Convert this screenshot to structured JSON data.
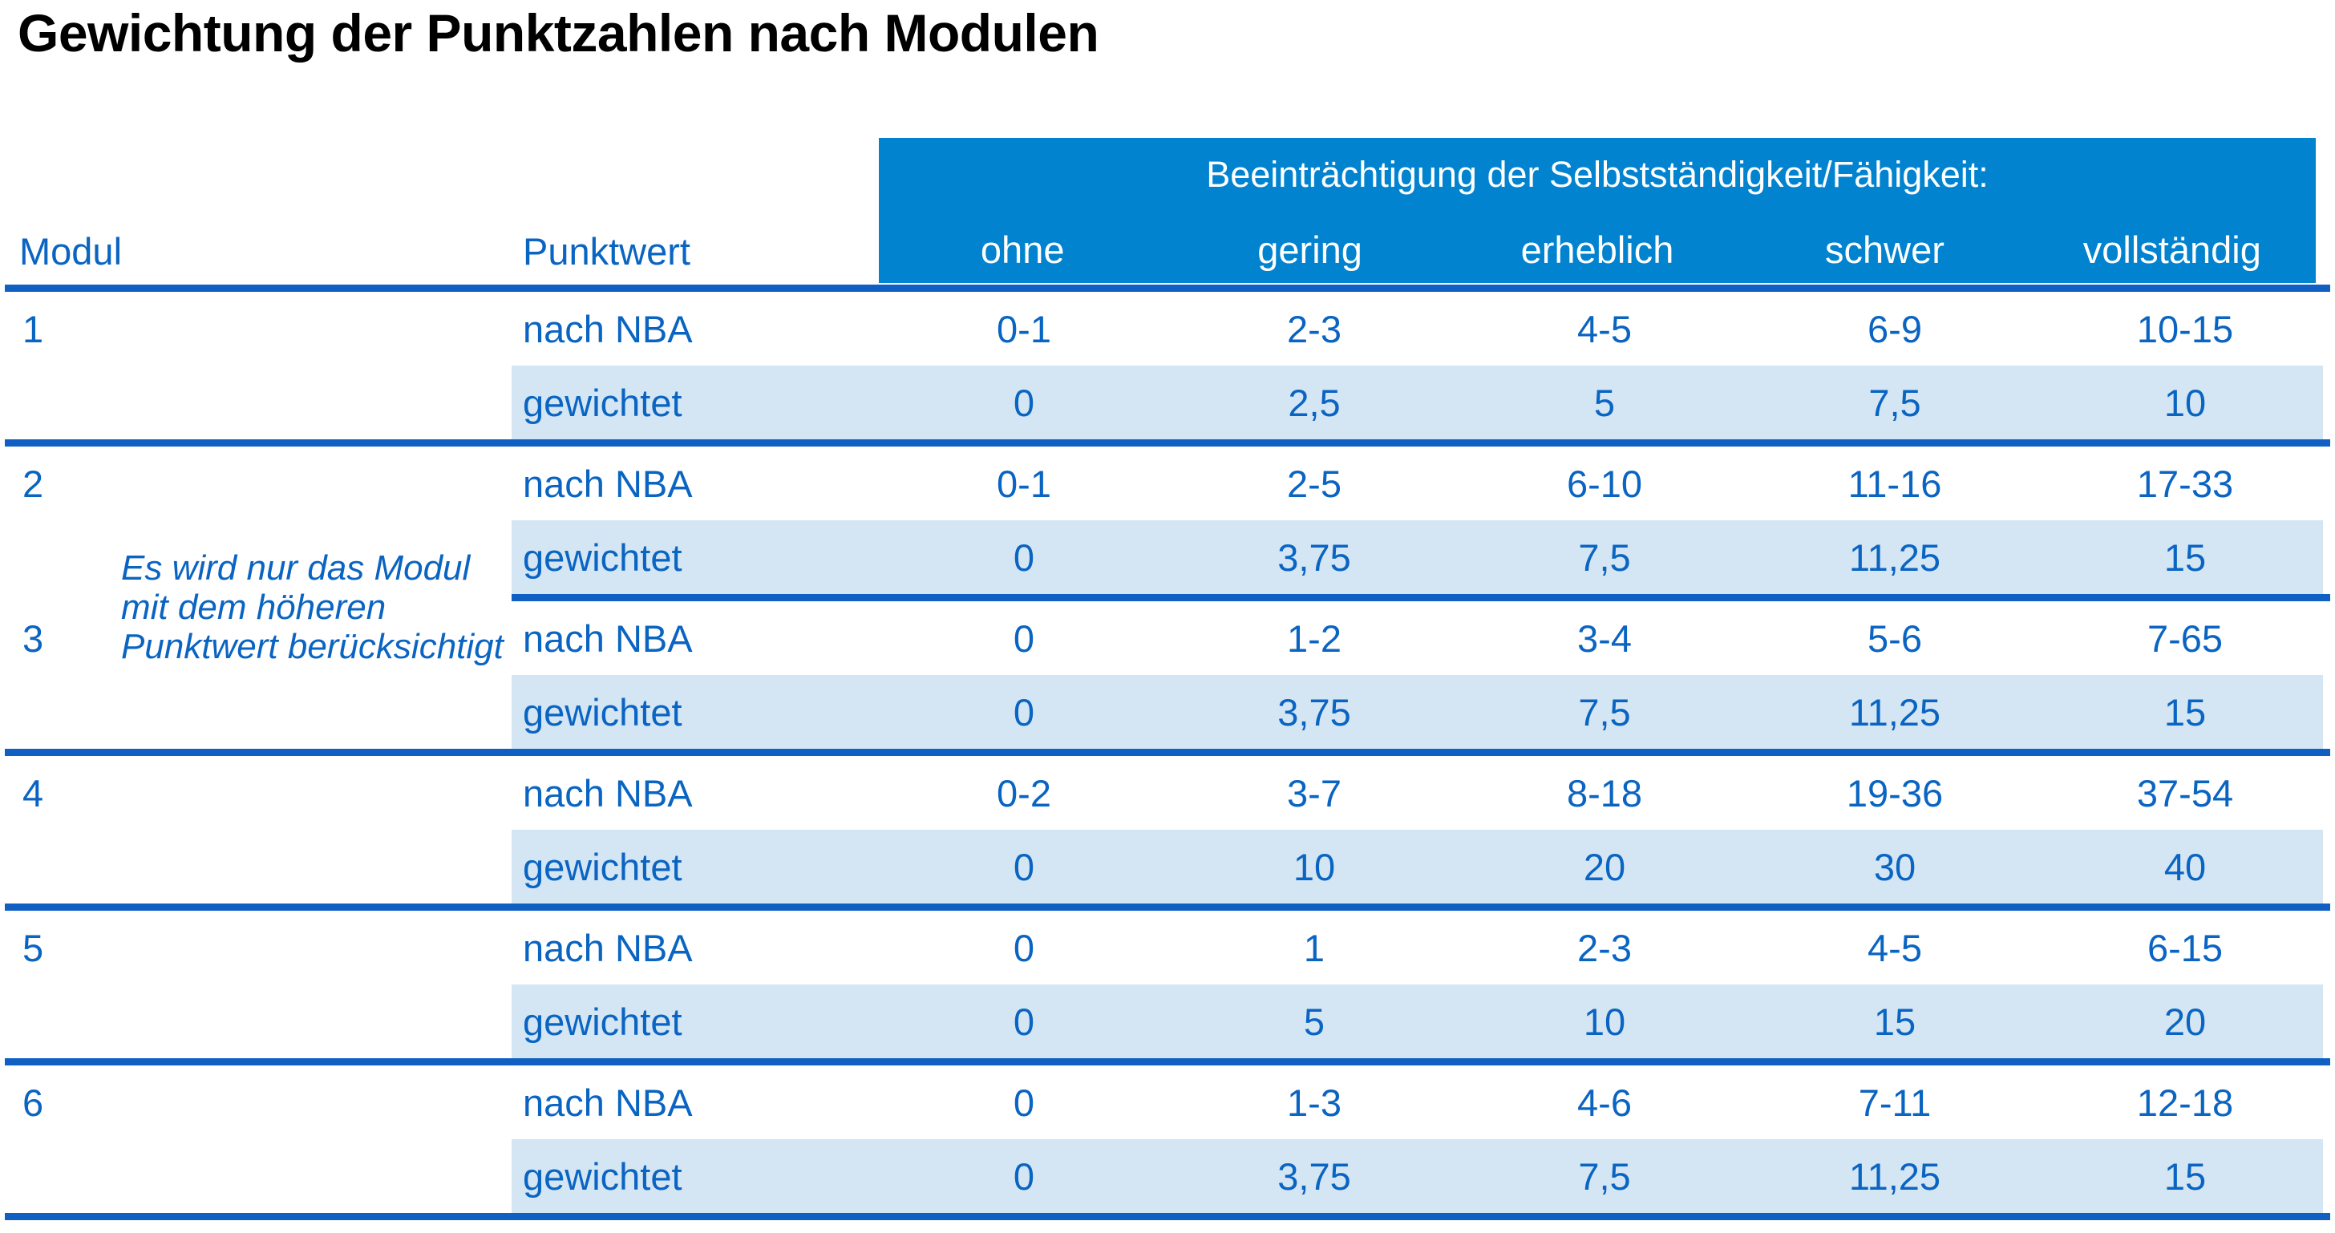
{
  "title": "Gewichtung der Punktzahlen nach Modulen",
  "colors": {
    "header_bg": "#0283CF",
    "separator_line": "#1060C4",
    "weighted_row_bg": "#D4E6F4",
    "text_blue": "#0A64C2",
    "header_text": "#FFFFFF",
    "title_text": "#000000"
  },
  "header": {
    "modul_label": "Modul",
    "punktwert_label": "Punktwert",
    "span_label": "Beeinträchtigung der Selbstständigkeit/Fähigkeit:",
    "severity_labels": [
      "ohne",
      "gering",
      "erheblich",
      "schwer",
      "vollständig"
    ]
  },
  "row_type_labels": {
    "nba": "nach NBA",
    "weighted": "gewichtet"
  },
  "note": {
    "lines": [
      "Es wird nur das Modul",
      "mit dem höheren",
      "Punktwert berücksichtigt"
    ]
  },
  "modules": [
    {
      "id": "1",
      "nach_nba": [
        "0-1",
        "2-3",
        "4-5",
        "6-9",
        "10-15"
      ],
      "gewichtet": [
        "0",
        "2,5",
        "5",
        "7,5",
        "10"
      ],
      "separator_after": "full"
    },
    {
      "id": "2",
      "nach_nba": [
        "0-1",
        "2-5",
        "6-10",
        "11-16",
        "17-33"
      ],
      "gewichtet": [
        "0",
        "3,75",
        "7,5",
        "11,25",
        "15"
      ],
      "separator_after": "partial"
    },
    {
      "id": "3",
      "nach_nba": [
        "0",
        "1-2",
        "3-4",
        "5-6",
        "7-65"
      ],
      "gewichtet": [
        "0",
        "3,75",
        "7,5",
        "11,25",
        "15"
      ],
      "separator_after": "full"
    },
    {
      "id": "4",
      "nach_nba": [
        "0-2",
        "3-7",
        "8-18",
        "19-36",
        "37-54"
      ],
      "gewichtet": [
        "0",
        "10",
        "20",
        "30",
        "40"
      ],
      "separator_after": "full"
    },
    {
      "id": "5",
      "nach_nba": [
        "0",
        "1",
        "2-3",
        "4-5",
        "6-15"
      ],
      "gewichtet": [
        "0",
        "5",
        "10",
        "15",
        "20"
      ],
      "separator_after": "full"
    },
    {
      "id": "6",
      "nach_nba": [
        "0",
        "1-3",
        "4-6",
        "7-11",
        "12-18"
      ],
      "gewichtet": [
        "0",
        "3,75",
        "7,5",
        "11,25",
        "15"
      ],
      "separator_after": "full"
    }
  ]
}
